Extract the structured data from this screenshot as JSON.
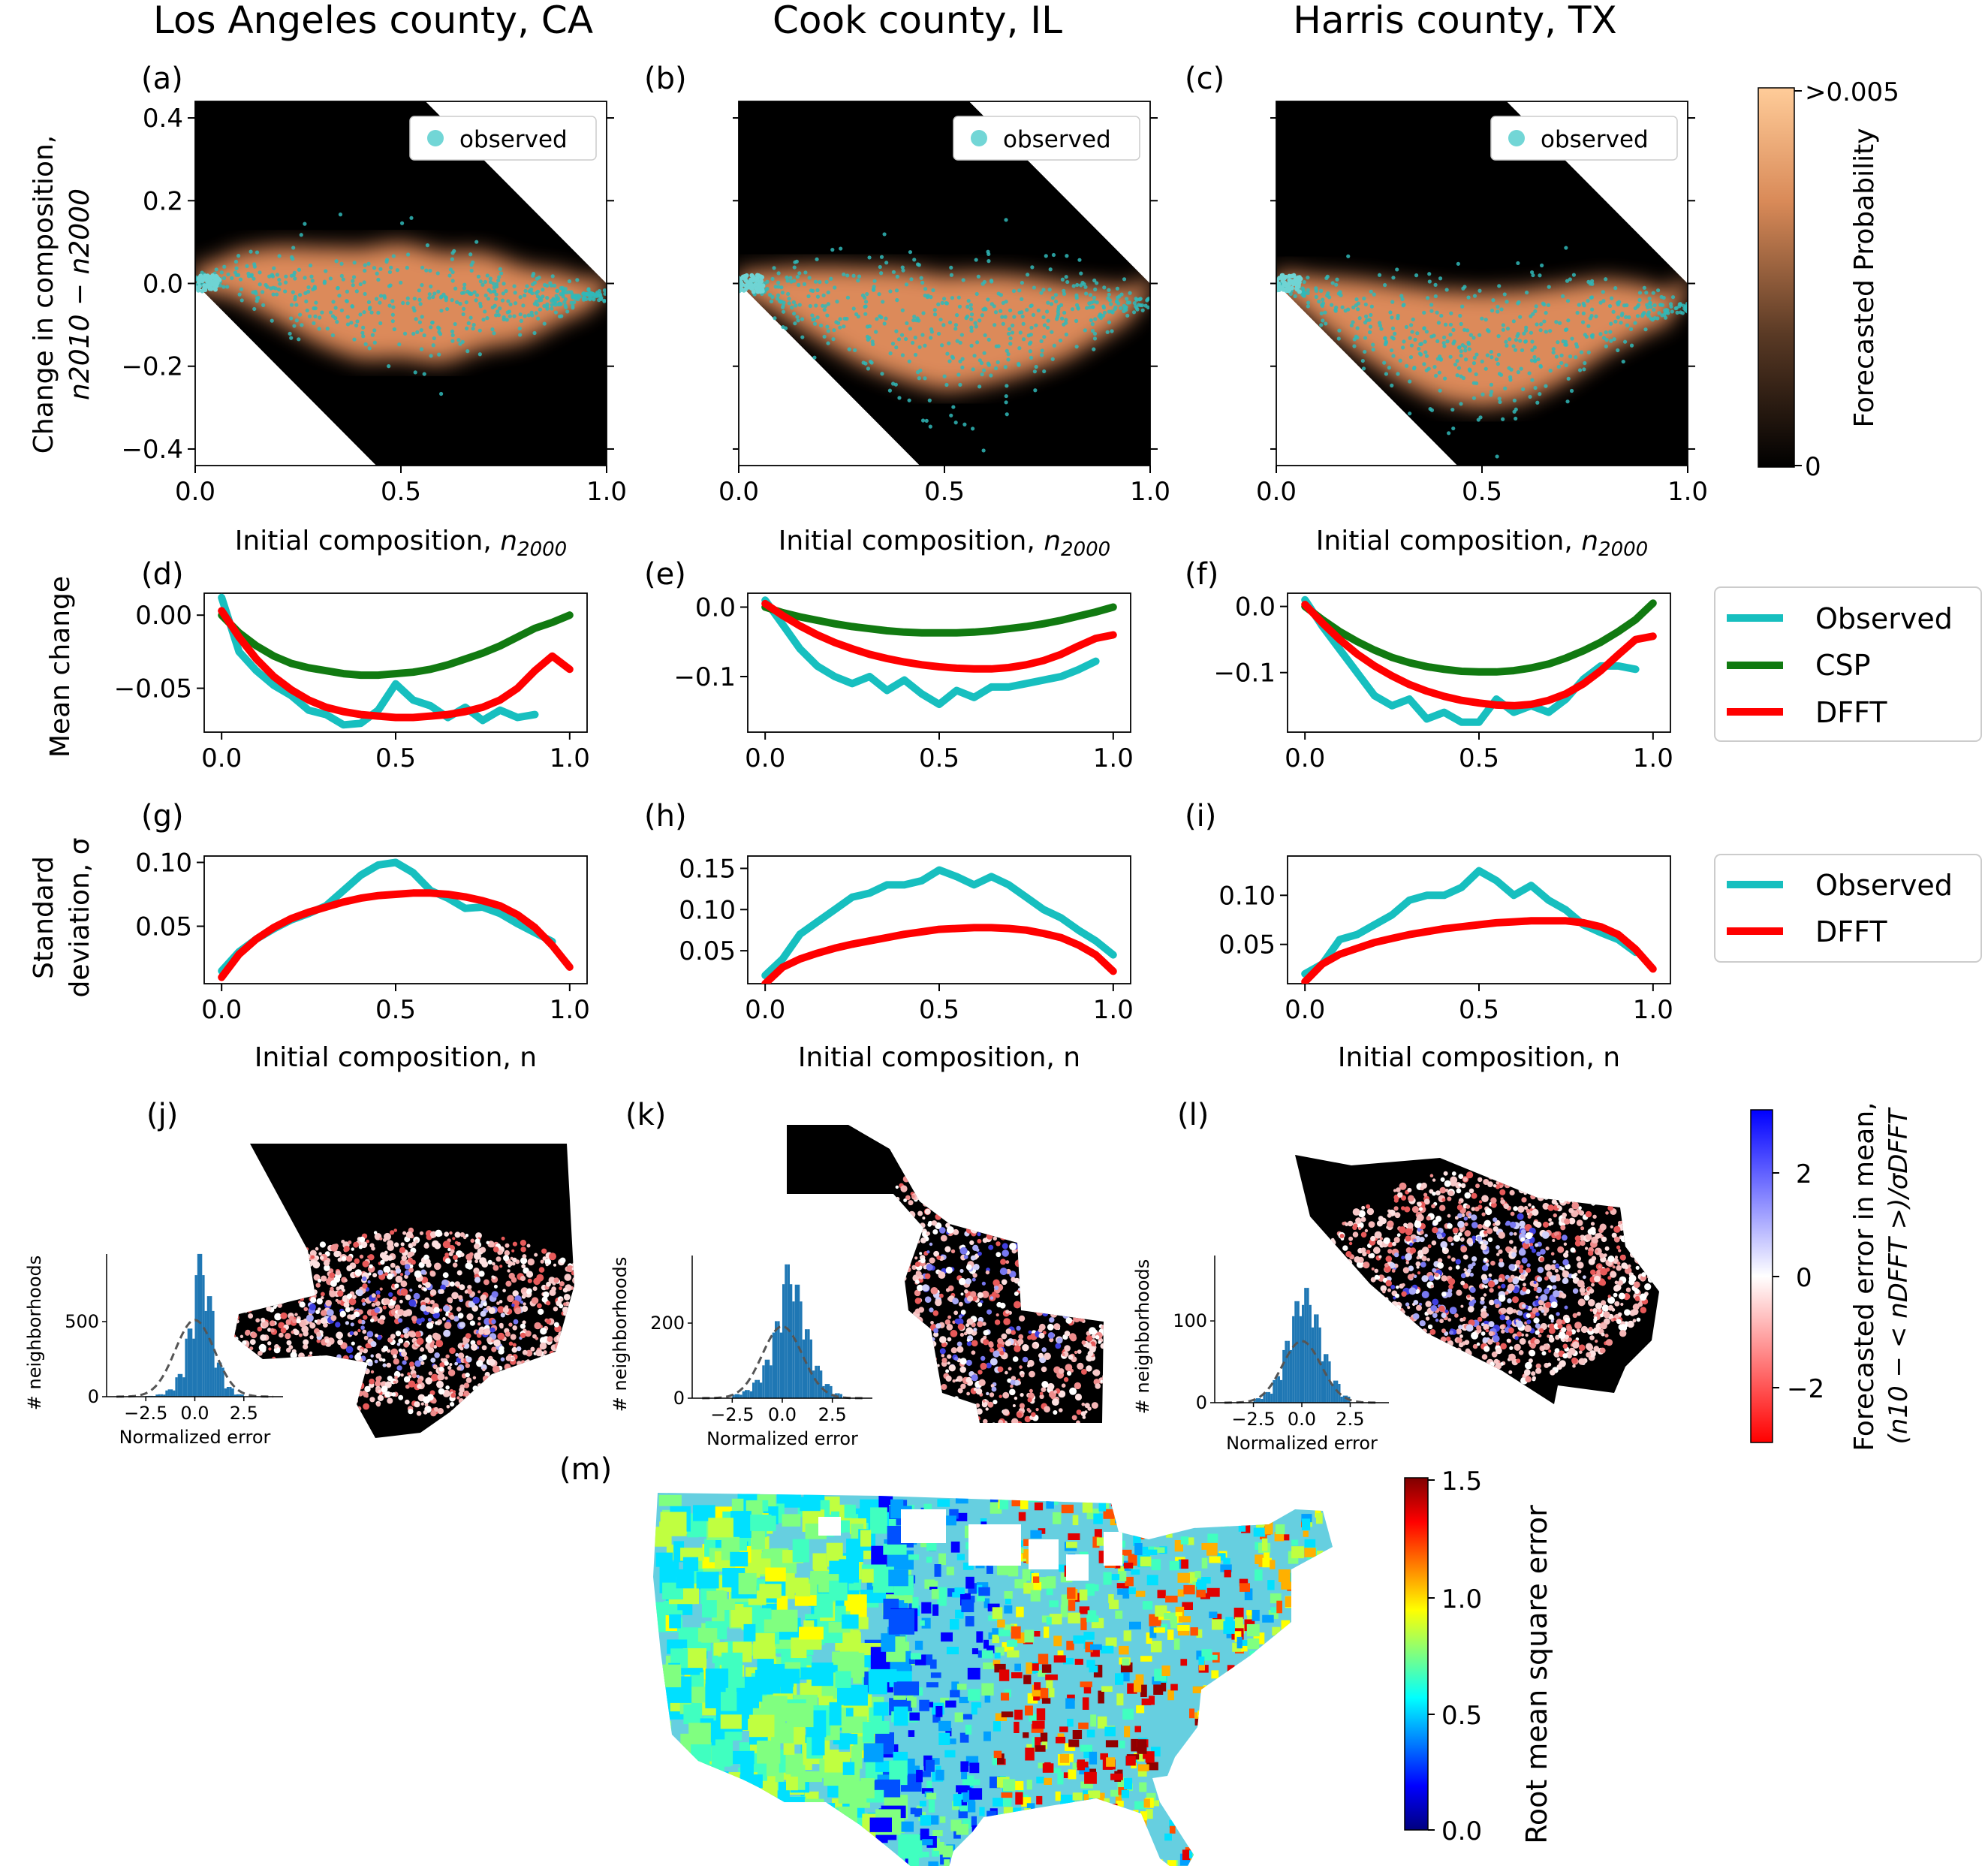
{
  "counties": [
    "Los Angeles county, CA",
    "Cook county, IL",
    "Harris county, TX"
  ],
  "panel_letters": [
    "(a)",
    "(b)",
    "(c)",
    "(d)",
    "(e)",
    "(f)",
    "(g)",
    "(h)",
    "(i)",
    "(j)",
    "(k)",
    "(l)",
    "(m)"
  ],
  "row1": {
    "ylabel_line1": "Change in composition,",
    "ylabel_line2": "n2010 − n2000",
    "xlabel": "Initial composition, n2000",
    "xticks": [
      "0.0",
      "0.5",
      "1.0"
    ],
    "yticks": [
      "0.4",
      "0.2",
      "0.0",
      "−0.2",
      "−0.4"
    ],
    "legend": "observed",
    "colorbar_label": "Forecasted Probability",
    "colorbar_ticks": [
      ">0.005",
      "0"
    ]
  },
  "row2": {
    "ylabel": "Mean change",
    "legend": [
      "Observed",
      "CSP",
      "DFFT"
    ]
  },
  "row3": {
    "ylabel_line1": "Standard",
    "ylabel_line2": "deviation, σ",
    "xlabel": "Initial composition, n",
    "legend": [
      "Observed",
      "DFFT"
    ]
  },
  "maps": {
    "hist_ylabel": "# neighborhoods",
    "hist_xlabel": "Normalized error",
    "hist_xticks": [
      "−2.5",
      "0.0",
      "2.5"
    ],
    "colorbar_label_line1": "Forecasted error in mean,",
    "colorbar_label_line2": "(n10 − < nDFFT >)/σDFFT",
    "colorbar_ticks": [
      "2",
      "0",
      "−2"
    ]
  },
  "us_map": {
    "colorbar_label": "Root mean square error",
    "colorbar_ticks": [
      "1.5",
      "1.0",
      "0.5",
      "0.0"
    ]
  },
  "colors": {
    "observed": "#17bfbf",
    "csp": "#117a11",
    "dfft": "#ff0000",
    "hist": "#1f77b4",
    "scatter_points": "#30b8b8"
  },
  "chart_data": [
    {
      "type": "scatter",
      "panel": "(a)",
      "title": "Los Angeles county, CA",
      "xlabel": "Initial composition, n2000",
      "ylabel": "Change in composition, n2010 − n2000",
      "xlim": [
        0,
        1
      ],
      "ylim": [
        -0.44,
        0.44
      ],
      "series": [
        {
          "name": "observed",
          "points": [
            [
              0.02,
              0.01
            ],
            [
              0.1,
              0.02
            ],
            [
              0.2,
              0.0
            ],
            [
              0.3,
              -0.03
            ],
            [
              0.4,
              -0.05
            ],
            [
              0.5,
              -0.04
            ],
            [
              0.6,
              -0.06
            ],
            [
              0.7,
              -0.04
            ],
            [
              0.8,
              -0.05
            ],
            [
              0.9,
              -0.03
            ]
          ]
        }
      ]
    },
    {
      "type": "scatter",
      "panel": "(b)",
      "title": "Cook county, IL",
      "xlabel": "Initial composition, n2000",
      "xlim": [
        0,
        1
      ],
      "ylim": [
        -0.44,
        0.44
      ],
      "series": [
        {
          "name": "observed",
          "points": [
            [
              0.02,
              0.0
            ],
            [
              0.1,
              -0.02
            ],
            [
              0.2,
              -0.05
            ],
            [
              0.3,
              -0.08
            ],
            [
              0.4,
              -0.1
            ],
            [
              0.5,
              -0.12
            ],
            [
              0.6,
              -0.11
            ],
            [
              0.7,
              -0.1
            ],
            [
              0.8,
              -0.09
            ],
            [
              0.95,
              -0.05
            ]
          ]
        }
      ]
    },
    {
      "type": "scatter",
      "panel": "(c)",
      "title": "Harris county, TX",
      "xlabel": "Initial composition, n2000",
      "xlim": [
        0,
        1
      ],
      "ylim": [
        -0.44,
        0.44
      ],
      "series": [
        {
          "name": "observed",
          "points": [
            [
              0.02,
              0.0
            ],
            [
              0.1,
              -0.04
            ],
            [
              0.2,
              -0.08
            ],
            [
              0.3,
              -0.12
            ],
            [
              0.4,
              -0.15
            ],
            [
              0.5,
              -0.16
            ],
            [
              0.6,
              -0.15
            ],
            [
              0.7,
              -0.12
            ],
            [
              0.8,
              -0.08
            ],
            [
              0.9,
              -0.06
            ]
          ]
        }
      ]
    },
    {
      "type": "line",
      "panel": "(d)",
      "ylabel": "Mean change",
      "xlim": [
        0,
        1
      ],
      "ylim": [
        -0.08,
        0.015
      ],
      "yticks": [
        0.0,
        -0.05
      ],
      "yticklabels": [
        "0.00",
        "−0.05"
      ],
      "xticks": [
        0,
        0.5,
        1.0
      ],
      "xticklabels": [
        "0.0",
        "0.5",
        "1.0"
      ],
      "x": [
        0,
        0.05,
        0.1,
        0.15,
        0.2,
        0.25,
        0.3,
        0.35,
        0.4,
        0.45,
        0.5,
        0.55,
        0.6,
        0.65,
        0.7,
        0.75,
        0.8,
        0.85,
        0.9,
        0.95,
        1.0
      ],
      "series": [
        {
          "name": "Observed",
          "values": [
            0.012,
            -0.025,
            -0.038,
            -0.048,
            -0.055,
            -0.065,
            -0.068,
            -0.075,
            -0.074,
            -0.065,
            -0.047,
            -0.058,
            -0.062,
            -0.07,
            -0.063,
            -0.072,
            -0.065,
            -0.07,
            -0.068,
            null,
            null
          ]
        },
        {
          "name": "CSP",
          "values": [
            0.0,
            -0.012,
            -0.021,
            -0.028,
            -0.033,
            -0.036,
            -0.038,
            -0.04,
            -0.041,
            -0.041,
            -0.04,
            -0.039,
            -0.037,
            -0.034,
            -0.03,
            -0.026,
            -0.021,
            -0.015,
            -0.009,
            -0.005,
            0.0
          ]
        },
        {
          "name": "DFFT",
          "values": [
            0.003,
            -0.015,
            -0.03,
            -0.042,
            -0.051,
            -0.058,
            -0.063,
            -0.066,
            -0.068,
            -0.069,
            -0.07,
            -0.07,
            -0.069,
            -0.068,
            -0.066,
            -0.063,
            -0.058,
            -0.05,
            -0.038,
            -0.028,
            -0.037
          ]
        }
      ]
    },
    {
      "type": "line",
      "panel": "(e)",
      "xlim": [
        0,
        1
      ],
      "ylim": [
        -0.18,
        0.02
      ],
      "yticks": [
        0.0,
        -0.1
      ],
      "yticklabels": [
        "0.0",
        "−0.1"
      ],
      "xticks": [
        0,
        0.5,
        1.0
      ],
      "xticklabels": [
        "0.0",
        "0.5",
        "1.0"
      ],
      "x": [
        0,
        0.05,
        0.1,
        0.15,
        0.2,
        0.25,
        0.3,
        0.35,
        0.4,
        0.45,
        0.5,
        0.55,
        0.6,
        0.65,
        0.7,
        0.75,
        0.8,
        0.85,
        0.9,
        0.95,
        1.0
      ],
      "series": [
        {
          "name": "Observed",
          "values": [
            0.01,
            -0.025,
            -0.06,
            -0.085,
            -0.1,
            -0.11,
            -0.1,
            -0.12,
            -0.105,
            -0.125,
            -0.14,
            -0.12,
            -0.13,
            -0.115,
            -0.115,
            -0.11,
            -0.105,
            -0.1,
            -0.09,
            -0.078,
            null
          ]
        },
        {
          "name": "CSP",
          "values": [
            0.0,
            -0.008,
            -0.014,
            -0.019,
            -0.024,
            -0.028,
            -0.031,
            -0.034,
            -0.036,
            -0.037,
            -0.037,
            -0.037,
            -0.036,
            -0.034,
            -0.031,
            -0.028,
            -0.024,
            -0.019,
            -0.013,
            -0.007,
            0.0
          ]
        },
        {
          "name": "DFFT",
          "values": [
            0.005,
            -0.012,
            -0.027,
            -0.04,
            -0.051,
            -0.06,
            -0.068,
            -0.074,
            -0.079,
            -0.083,
            -0.086,
            -0.088,
            -0.089,
            -0.089,
            -0.087,
            -0.083,
            -0.077,
            -0.068,
            -0.056,
            -0.045,
            -0.04
          ]
        }
      ]
    },
    {
      "type": "line",
      "panel": "(f)",
      "xlim": [
        0,
        1
      ],
      "ylim": [
        -0.19,
        0.02
      ],
      "yticks": [
        0.0,
        -0.1
      ],
      "yticklabels": [
        "0.0",
        "−0.1"
      ],
      "xticks": [
        0,
        0.5,
        1.0
      ],
      "xticklabels": [
        "0.0",
        "0.5",
        "1.0"
      ],
      "x": [
        0,
        0.05,
        0.1,
        0.15,
        0.2,
        0.25,
        0.3,
        0.35,
        0.4,
        0.45,
        0.5,
        0.55,
        0.6,
        0.65,
        0.7,
        0.75,
        0.8,
        0.85,
        0.9,
        0.95,
        1.0
      ],
      "series": [
        {
          "name": "Observed",
          "values": [
            0.01,
            -0.03,
            -0.065,
            -0.1,
            -0.135,
            -0.15,
            -0.14,
            -0.17,
            -0.16,
            -0.175,
            -0.175,
            -0.14,
            -0.16,
            -0.15,
            -0.16,
            -0.14,
            -0.11,
            -0.09,
            -0.09,
            -0.095,
            null
          ]
        },
        {
          "name": "CSP",
          "values": [
            0.0,
            -0.02,
            -0.038,
            -0.053,
            -0.066,
            -0.077,
            -0.085,
            -0.091,
            -0.095,
            -0.098,
            -0.099,
            -0.099,
            -0.097,
            -0.093,
            -0.087,
            -0.078,
            -0.067,
            -0.054,
            -0.038,
            -0.02,
            0.005
          ]
        },
        {
          "name": "DFFT",
          "values": [
            0.003,
            -0.025,
            -0.05,
            -0.072,
            -0.09,
            -0.105,
            -0.118,
            -0.128,
            -0.136,
            -0.142,
            -0.146,
            -0.149,
            -0.15,
            -0.148,
            -0.142,
            -0.132,
            -0.117,
            -0.097,
            -0.073,
            -0.05,
            -0.045
          ]
        }
      ]
    },
    {
      "type": "line",
      "panel": "(g)",
      "ylabel": "Standard deviation, σ",
      "xlabel": "Initial composition, n",
      "xlim": [
        0,
        1
      ],
      "ylim": [
        0.005,
        0.105
      ],
      "yticks": [
        0.1,
        0.05
      ],
      "yticklabels": [
        "0.10",
        "0.05"
      ],
      "xticks": [
        0,
        0.5,
        1.0
      ],
      "xticklabels": [
        "0.0",
        "0.5",
        "1.0"
      ],
      "x": [
        0,
        0.05,
        0.1,
        0.15,
        0.2,
        0.25,
        0.3,
        0.35,
        0.4,
        0.45,
        0.5,
        0.55,
        0.6,
        0.65,
        0.7,
        0.75,
        0.8,
        0.85,
        0.9,
        0.95,
        1.0
      ],
      "series": [
        {
          "name": "Observed",
          "values": [
            0.015,
            0.03,
            0.04,
            0.048,
            0.055,
            0.06,
            0.066,
            0.078,
            0.09,
            0.098,
            0.1,
            0.092,
            0.078,
            0.072,
            0.064,
            0.065,
            0.06,
            0.052,
            0.045,
            0.038,
            null
          ]
        },
        {
          "name": "DFFT",
          "values": [
            0.01,
            0.028,
            0.04,
            0.049,
            0.056,
            0.061,
            0.065,
            0.069,
            0.072,
            0.074,
            0.075,
            0.076,
            0.076,
            0.075,
            0.073,
            0.07,
            0.066,
            0.059,
            0.049,
            0.035,
            0.018
          ]
        }
      ]
    },
    {
      "type": "line",
      "panel": "(h)",
      "xlabel": "Initial composition, n",
      "xlim": [
        0,
        1
      ],
      "ylim": [
        0.01,
        0.165
      ],
      "yticks": [
        0.15,
        0.1,
        0.05
      ],
      "yticklabels": [
        "0.15",
        "0.10",
        "0.05"
      ],
      "xticks": [
        0,
        0.5,
        1.0
      ],
      "xticklabels": [
        "0.0",
        "0.5",
        "1.0"
      ],
      "x": [
        0,
        0.05,
        0.1,
        0.15,
        0.2,
        0.25,
        0.3,
        0.35,
        0.4,
        0.45,
        0.5,
        0.55,
        0.6,
        0.65,
        0.7,
        0.75,
        0.8,
        0.85,
        0.9,
        0.95,
        1.0
      ],
      "series": [
        {
          "name": "Observed",
          "values": [
            0.02,
            0.04,
            0.07,
            0.085,
            0.1,
            0.115,
            0.12,
            0.13,
            0.13,
            0.135,
            0.148,
            0.14,
            0.13,
            0.14,
            0.13,
            0.115,
            0.1,
            0.09,
            0.075,
            0.062,
            0.045
          ]
        },
        {
          "name": "DFFT",
          "values": [
            0.01,
            0.03,
            0.04,
            0.047,
            0.053,
            0.058,
            0.062,
            0.066,
            0.07,
            0.073,
            0.076,
            0.077,
            0.078,
            0.078,
            0.077,
            0.075,
            0.071,
            0.066,
            0.057,
            0.045,
            0.025
          ]
        }
      ]
    },
    {
      "type": "line",
      "panel": "(i)",
      "xlabel": "Initial composition, n",
      "xlim": [
        0,
        1
      ],
      "ylim": [
        0.01,
        0.14
      ],
      "yticks": [
        0.1,
        0.05
      ],
      "yticklabels": [
        "0.10",
        "0.05"
      ],
      "xticks": [
        0,
        0.5,
        1.0
      ],
      "xticklabels": [
        "0.0",
        "0.5",
        "1.0"
      ],
      "x": [
        0,
        0.05,
        0.1,
        0.15,
        0.2,
        0.25,
        0.3,
        0.35,
        0.4,
        0.45,
        0.5,
        0.55,
        0.6,
        0.65,
        0.7,
        0.75,
        0.8,
        0.85,
        0.9,
        0.95,
        1.0
      ],
      "series": [
        {
          "name": "Observed",
          "values": [
            0.02,
            0.03,
            0.055,
            0.06,
            0.07,
            0.08,
            0.095,
            0.1,
            0.1,
            0.108,
            0.125,
            0.115,
            0.1,
            0.11,
            0.095,
            0.085,
            0.07,
            0.062,
            0.055,
            0.042,
            null
          ]
        },
        {
          "name": "DFFT",
          "values": [
            0.012,
            0.03,
            0.04,
            0.046,
            0.052,
            0.056,
            0.06,
            0.063,
            0.066,
            0.068,
            0.07,
            0.072,
            0.073,
            0.074,
            0.074,
            0.074,
            0.072,
            0.068,
            0.06,
            0.045,
            0.025
          ]
        }
      ]
    },
    {
      "type": "bar",
      "panel": "(j)",
      "ylabel": "# neighborhoods",
      "xlabel": "Normalized error",
      "xlim": [
        -4.5,
        4.5
      ],
      "ylim": [
        0,
        950
      ],
      "yticks": [
        0,
        500
      ],
      "xticks": [
        -2.5,
        0.0,
        2.5
      ],
      "bin_centers": [
        -2.25,
        -1.75,
        -1.25,
        -0.75,
        -0.25,
        0.25,
        0.75,
        1.25,
        1.75,
        2.25
      ],
      "values": [
        5,
        15,
        45,
        140,
        420,
        880,
        620,
        210,
        60,
        15
      ]
    },
    {
      "type": "bar",
      "panel": "(k)",
      "ylabel": "# neighborhoods",
      "xlabel": "Normalized error",
      "xlim": [
        -4.5,
        4.5
      ],
      "ylim": [
        0,
        380
      ],
      "yticks": [
        0,
        200
      ],
      "xticks": [
        -2.5,
        0.0,
        2.5
      ],
      "bin_centers": [
        -2.25,
        -1.75,
        -1.25,
        -0.75,
        -0.25,
        0.25,
        0.75,
        1.25,
        1.75,
        2.25,
        2.75
      ],
      "values": [
        10,
        20,
        45,
        95,
        190,
        330,
        280,
        170,
        80,
        35,
        12
      ]
    },
    {
      "type": "bar",
      "panel": "(l)",
      "ylabel": "# neighborhoods",
      "xlabel": "Normalized error",
      "xlim": [
        -4.5,
        4.5
      ],
      "ylim": [
        0,
        180
      ],
      "yticks": [
        0,
        100
      ],
      "xticks": [
        -2.5,
        0.0,
        2.5
      ],
      "bin_centers": [
        -2.25,
        -1.75,
        -1.25,
        -0.75,
        -0.25,
        0.25,
        0.75,
        1.25,
        1.75,
        2.25
      ],
      "values": [
        5,
        12,
        30,
        70,
        115,
        130,
        100,
        55,
        25,
        8
      ]
    }
  ]
}
